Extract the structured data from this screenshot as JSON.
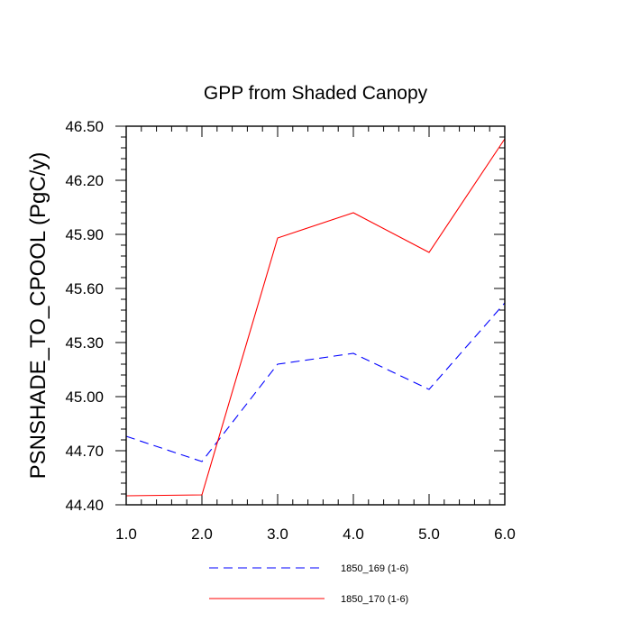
{
  "chart_data": {
    "type": "line",
    "title": "GPP from Shaded Canopy",
    "xlabel": "",
    "ylabel": "PSNSHADE_TO_CPOOL  (PgC/y)",
    "xlim": [
      1.0,
      6.0
    ],
    "ylim": [
      44.4,
      46.5
    ],
    "x_ticks": [
      1.0,
      2.0,
      3.0,
      4.0,
      5.0,
      6.0
    ],
    "x_tick_labels": [
      "1.0",
      "2.0",
      "3.0",
      "4.0",
      "5.0",
      "6.0"
    ],
    "y_ticks": [
      44.4,
      44.7,
      45.0,
      45.3,
      45.6,
      45.9,
      46.2,
      46.5
    ],
    "y_tick_labels": [
      "44.40",
      "44.70",
      "45.00",
      "45.30",
      "45.60",
      "45.90",
      "46.20",
      "46.50"
    ],
    "x": [
      1,
      2,
      3,
      4,
      5,
      6
    ],
    "series": [
      {
        "name": "1850_169 (1-6)",
        "color": "#0000ff",
        "dash": "dashed",
        "values": [
          44.78,
          44.64,
          45.18,
          45.24,
          45.04,
          45.52
        ]
      },
      {
        "name": "1850_170 (1-6)",
        "color": "#ff0000",
        "dash": "solid",
        "values": [
          44.45,
          44.455,
          45.88,
          46.02,
          45.8,
          46.43
        ]
      }
    ],
    "legend_position": "bottom",
    "grid": false
  }
}
